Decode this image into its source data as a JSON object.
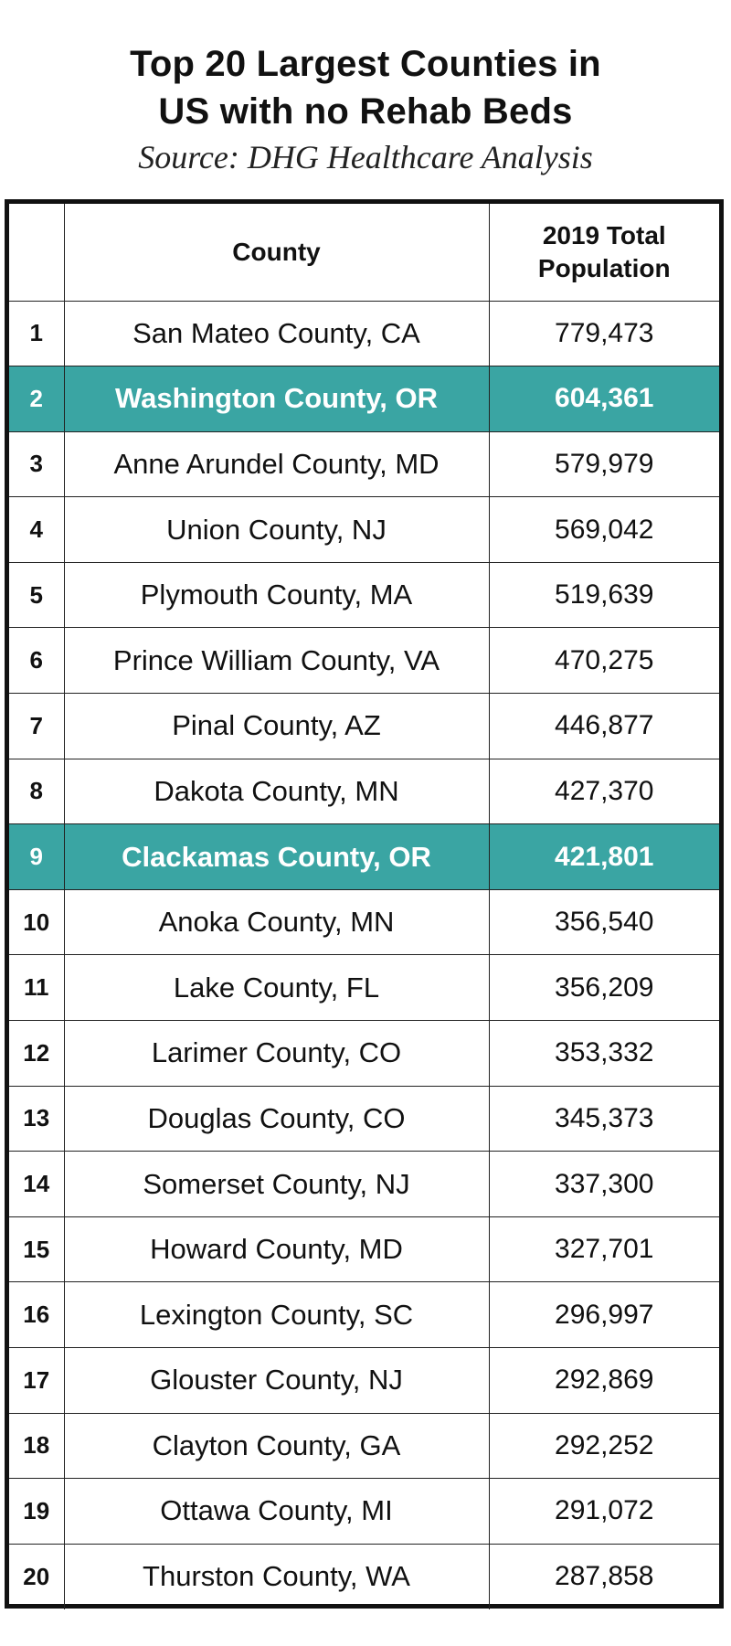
{
  "title_line1": "Top 20 Largest Counties in",
  "title_line2": "US with no Rehab Beds",
  "subtitle": "Source: DHG Healthcare Analysis",
  "highlight_color": "#3aa5a3",
  "table": {
    "columns": [
      "",
      "County",
      "2019 Total Population"
    ],
    "header_pop_line1": "2019 Total",
    "header_pop_line2": "Population",
    "rows": [
      {
        "rank": "1",
        "county": "San Mateo County, CA",
        "population": "779,473",
        "highlight": false
      },
      {
        "rank": "2",
        "county": "Washington County, OR",
        "population": "604,361",
        "highlight": true
      },
      {
        "rank": "3",
        "county": "Anne Arundel County, MD",
        "population": "579,979",
        "highlight": false
      },
      {
        "rank": "4",
        "county": "Union County, NJ",
        "population": "569,042",
        "highlight": false
      },
      {
        "rank": "5",
        "county": "Plymouth County, MA",
        "population": "519,639",
        "highlight": false
      },
      {
        "rank": "6",
        "county": "Prince William County, VA",
        "population": "470,275",
        "highlight": false
      },
      {
        "rank": "7",
        "county": "Pinal County, AZ",
        "population": "446,877",
        "highlight": false
      },
      {
        "rank": "8",
        "county": "Dakota County, MN",
        "population": "427,370",
        "highlight": false
      },
      {
        "rank": "9",
        "county": "Clackamas County, OR",
        "population": "421,801",
        "highlight": true
      },
      {
        "rank": "10",
        "county": "Anoka County, MN",
        "population": "356,540",
        "highlight": false
      },
      {
        "rank": "11",
        "county": "Lake County, FL",
        "population": "356,209",
        "highlight": false
      },
      {
        "rank": "12",
        "county": "Larimer County, CO",
        "population": "353,332",
        "highlight": false
      },
      {
        "rank": "13",
        "county": "Douglas County, CO",
        "population": "345,373",
        "highlight": false
      },
      {
        "rank": "14",
        "county": "Somerset County, NJ",
        "population": "337,300",
        "highlight": false
      },
      {
        "rank": "15",
        "county": "Howard County, MD",
        "population": "327,701",
        "highlight": false
      },
      {
        "rank": "16",
        "county": "Lexington County, SC",
        "population": "296,997",
        "highlight": false
      },
      {
        "rank": "17",
        "county": "Glouster County, NJ",
        "population": "292,869",
        "highlight": false
      },
      {
        "rank": "18",
        "county": "Clayton County, GA",
        "population": "292,252",
        "highlight": false
      },
      {
        "rank": "19",
        "county": "Ottawa County, MI",
        "population": "291,072",
        "highlight": false
      },
      {
        "rank": "20",
        "county": "Thurston County, WA",
        "population": "287,858",
        "highlight": false
      }
    ]
  }
}
